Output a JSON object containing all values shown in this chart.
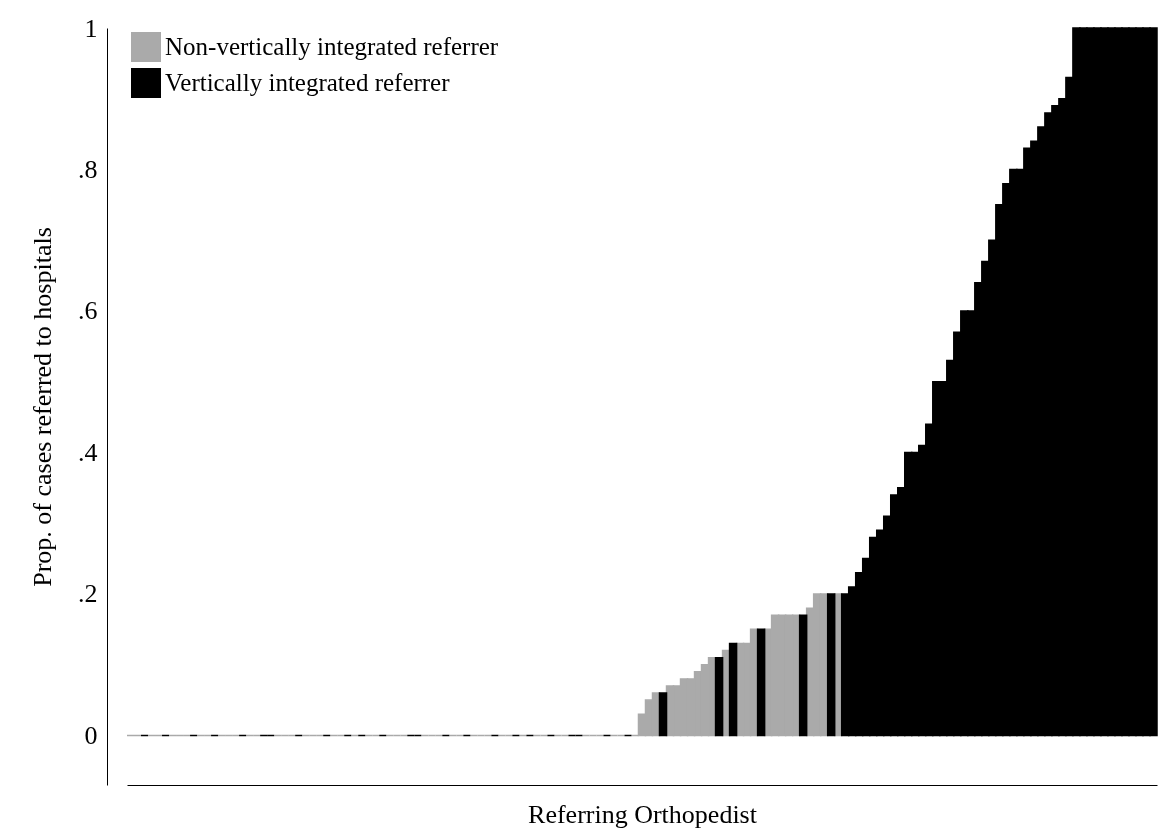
{
  "chart_data": {
    "type": "bar",
    "xlabel": "Referring Orthopedist",
    "ylabel": "Prop. of cases referred to hospitals",
    "categories": [
      null,
      null,
      null,
      null,
      null,
      null,
      null,
      null,
      null,
      null,
      null,
      null,
      null,
      null,
      null,
      null,
      null,
      null,
      null,
      null,
      null,
      null,
      null,
      null,
      null,
      null,
      null,
      null,
      null,
      null,
      null,
      null,
      null,
      null,
      null,
      null,
      null,
      null,
      null,
      null,
      null,
      null,
      null,
      null,
      null,
      null,
      null,
      null,
      null,
      null,
      null,
      null,
      null,
      null,
      null,
      null,
      null,
      null,
      null,
      null,
      null,
      null,
      null,
      null,
      null,
      null,
      null,
      null,
      null,
      null,
      null,
      null,
      null,
      null,
      null,
      null,
      null,
      null,
      null,
      null,
      null,
      null,
      null,
      null,
      null,
      null,
      null,
      null,
      null,
      null,
      null,
      null,
      null,
      null,
      null,
      null,
      null,
      null,
      null,
      null,
      null,
      null,
      null,
      null,
      null,
      null,
      null,
      null,
      null,
      null,
      null,
      null,
      null,
      null,
      null,
      null,
      null,
      null,
      null,
      null,
      null,
      null,
      null,
      null,
      null,
      null,
      null,
      null,
      null,
      null,
      null,
      null,
      null,
      null,
      null,
      null,
      null,
      null,
      null,
      null,
      null,
      null,
      null,
      null,
      null,
      null,
      null
    ],
    "series": [
      {
        "name": "Non-vertically integrated referrer",
        "color": "#aaaaaa",
        "values": [
          0,
          0,
          null,
          0,
          0,
          null,
          0,
          0,
          0,
          null,
          0,
          0,
          null,
          0,
          0,
          0,
          null,
          0,
          0,
          null,
          null,
          0,
          0,
          0,
          null,
          0,
          0,
          0,
          null,
          0,
          0,
          null,
          0,
          null,
          0,
          0,
          null,
          0,
          0,
          0,
          null,
          null,
          0,
          0,
          0,
          null,
          0,
          0,
          null,
          0,
          0,
          0,
          null,
          0,
          0,
          null,
          0,
          null,
          0,
          0,
          null,
          0,
          0,
          null,
          null,
          0,
          0,
          0,
          null,
          0,
          0,
          null,
          0,
          0.03,
          0.05,
          0.06,
          null,
          0.07,
          0.07,
          0.08,
          0.08,
          0.09,
          0.1,
          0.11,
          null,
          0.12,
          null,
          0.13,
          0.13,
          0.15,
          null,
          0.15,
          0.17,
          0.17,
          0.17,
          0.17,
          null,
          0.18,
          0.2,
          0.2,
          null,
          0.2,
          null,
          null,
          null,
          null,
          null,
          null,
          null,
          null,
          null,
          null,
          null,
          null,
          null,
          null,
          null,
          null,
          null,
          null,
          null,
          null,
          null,
          null,
          null,
          null,
          null,
          null,
          null,
          null,
          null,
          null,
          null,
          null,
          null,
          null,
          null,
          null,
          null,
          null,
          null,
          null,
          null,
          null,
          null,
          null,
          null
        ]
      },
      {
        "name": "Vertically integrated referrer",
        "color": "#000000",
        "values": [
          null,
          null,
          0,
          null,
          null,
          0,
          null,
          null,
          null,
          0,
          null,
          null,
          0,
          null,
          null,
          null,
          0,
          null,
          null,
          0,
          0,
          null,
          null,
          null,
          0,
          null,
          null,
          null,
          0,
          null,
          null,
          0,
          null,
          0,
          null,
          null,
          0,
          null,
          null,
          null,
          0,
          0,
          null,
          null,
          null,
          0,
          null,
          null,
          0,
          null,
          null,
          null,
          0,
          null,
          null,
          0,
          null,
          0,
          null,
          null,
          0,
          null,
          null,
          0,
          0,
          null,
          null,
          null,
          0,
          null,
          null,
          0,
          null,
          null,
          null,
          null,
          0.06,
          null,
          null,
          null,
          null,
          null,
          null,
          null,
          0.11,
          null,
          0.13,
          null,
          null,
          null,
          0.15,
          null,
          null,
          null,
          null,
          null,
          0.17,
          null,
          null,
          null,
          0.2,
          null,
          0.2,
          0.21,
          0.23,
          0.25,
          0.28,
          0.29,
          0.31,
          0.34,
          0.35,
          0.4,
          0.4,
          0.41,
          0.44,
          0.5,
          0.5,
          0.53,
          0.57,
          0.6,
          0.6,
          0.64,
          0.67,
          0.7,
          0.75,
          0.78,
          0.8,
          0.8,
          0.83,
          0.84,
          0.86,
          0.88,
          0.89,
          0.9,
          0.93,
          1,
          1,
          1,
          1,
          1,
          1,
          1,
          1,
          1,
          1,
          1,
          1
        ]
      }
    ],
    "ylim": [
      -0.07,
      1
    ],
    "yticks": [
      0,
      {
        "value": 0.2,
        "label": ".2"
      },
      {
        "value": 0.4,
        "label": ".4"
      },
      {
        "value": 0.6,
        "label": ".6"
      },
      {
        "value": 0.8,
        "label": ".8"
      },
      1
    ],
    "tick_labels": "y",
    "legend": "top left"
  }
}
